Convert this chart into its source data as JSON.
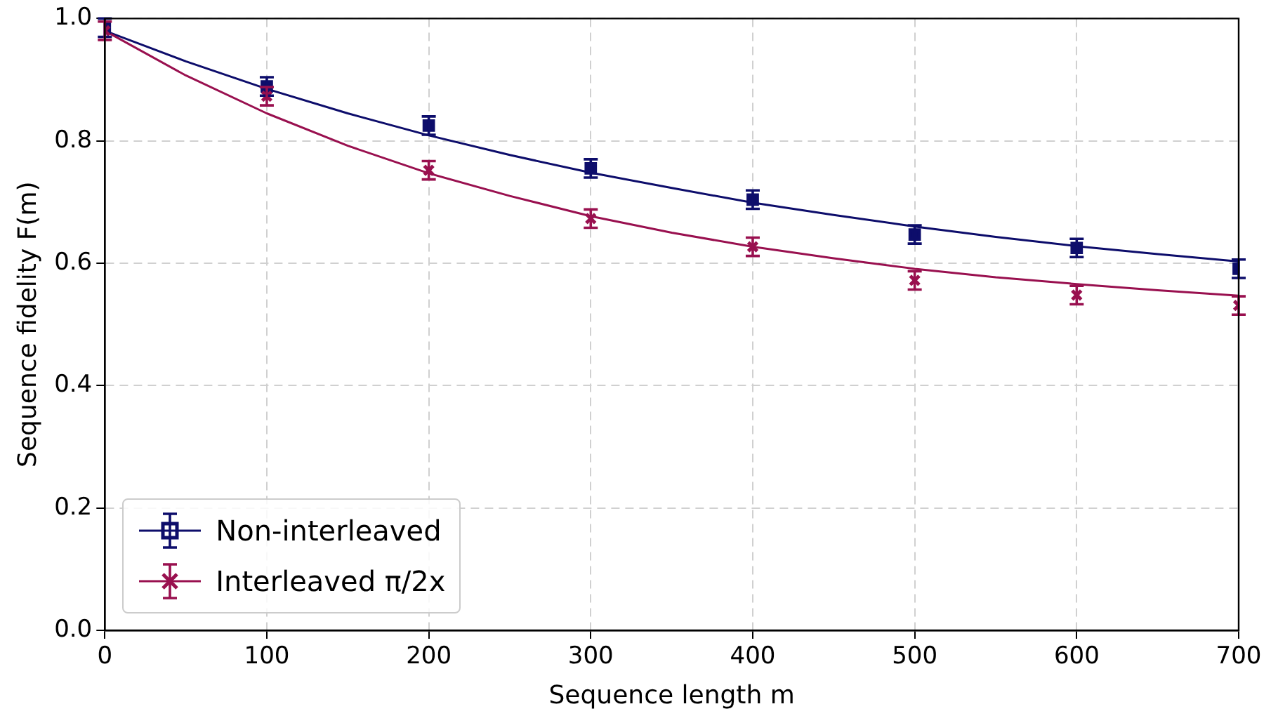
{
  "chart_data": {
    "type": "scatter",
    "xlabel": "Sequence length m",
    "ylabel": "Sequence fidelity F(m)",
    "xlim": [
      0,
      700
    ],
    "xticks": [
      0,
      100,
      200,
      300,
      400,
      500,
      600,
      700
    ],
    "ylim": [
      0,
      1
    ],
    "yticks": [
      {
        "value": 0,
        "label": "0.0"
      },
      0.2,
      0.4,
      0.6,
      0.8,
      {
        "value": 1,
        "label": "1.0"
      }
    ],
    "grid": true,
    "legend": "bottom left",
    "series": [
      {
        "type": "line",
        "marker": "none",
        "color": "#0d0d6b",
        "x": [
          0,
          50,
          100,
          150,
          200,
          250,
          300,
          350,
          400,
          450,
          500,
          550,
          600,
          650,
          700
        ],
        "values": [
          0.98,
          0.93,
          0.885,
          0.845,
          0.809,
          0.777,
          0.748,
          0.723,
          0.699,
          0.679,
          0.66,
          0.643,
          0.628,
          0.615,
          0.603
        ]
      },
      {
        "type": "line",
        "marker": "none",
        "color": "#99104f",
        "x": [
          0,
          50,
          100,
          150,
          200,
          250,
          300,
          350,
          400,
          450,
          500,
          550,
          600,
          650,
          700
        ],
        "values": [
          0.98,
          0.907,
          0.845,
          0.792,
          0.747,
          0.71,
          0.677,
          0.65,
          0.627,
          0.608,
          0.591,
          0.577,
          0.566,
          0.556,
          0.547
        ]
      },
      {
        "name": "Non-interleaved",
        "type": "scatter",
        "marker": "square",
        "color": "#0d0d6b",
        "x": [
          0,
          100,
          200,
          300,
          400,
          500,
          600,
          700
        ],
        "values": [
          0.985,
          0.889,
          0.825,
          0.755,
          0.704,
          0.647,
          0.625,
          0.591
        ],
        "errors": [
          0.015,
          0.015,
          0.015,
          0.015,
          0.015,
          0.015,
          0.015,
          0.015
        ]
      },
      {
        "name": "Interleaved π/2x",
        "type": "scatter",
        "marker": "cross",
        "color": "#99104f",
        "x": [
          0,
          100,
          200,
          300,
          400,
          500,
          600,
          700
        ],
        "values": [
          0.98,
          0.873,
          0.752,
          0.673,
          0.627,
          0.572,
          0.548,
          0.531
        ],
        "errors": [
          0.015,
          0.015,
          0.015,
          0.015,
          0.015,
          0.015,
          0.015,
          0.015
        ]
      }
    ]
  }
}
